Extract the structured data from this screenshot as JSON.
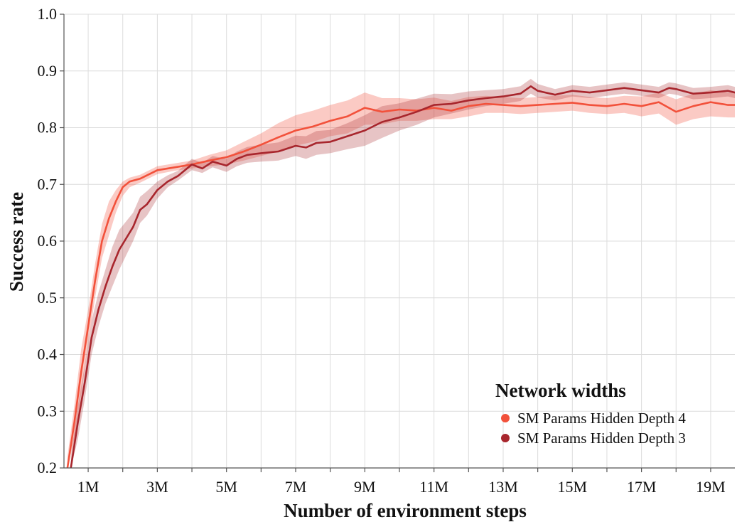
{
  "chart_data": {
    "type": "line",
    "title": "",
    "xlabel": "Number of environment steps",
    "ylabel": "Success rate",
    "xlim": [
      0.3,
      19.7
    ],
    "ylim": [
      0.2,
      1.0
    ],
    "x_unit": "M steps",
    "x_ticks": [
      1,
      3,
      5,
      7,
      9,
      11,
      13,
      15,
      17,
      19
    ],
    "x_tick_labels": [
      "1M",
      "3M",
      "5M",
      "7M",
      "9M",
      "11M",
      "13M",
      "15M",
      "17M",
      "19M"
    ],
    "x_grid": [
      1,
      2,
      3,
      4,
      5,
      6,
      7,
      8,
      9,
      10,
      11,
      12,
      13,
      14,
      15,
      16,
      17,
      18,
      19
    ],
    "y_ticks": [
      0.2,
      0.3,
      0.4,
      0.5,
      0.6,
      0.7,
      0.8,
      0.9,
      1.0
    ],
    "y_tick_labels": [
      "0.2",
      "0.3",
      "0.4",
      "0.5",
      "0.6",
      "0.7",
      "0.8",
      "0.9",
      "1.0"
    ],
    "grid": true,
    "legend": {
      "title": "Network widths",
      "placement": "bottom-right",
      "entries": [
        "SM Params Hidden Depth 4",
        "SM Params Hidden Depth 3"
      ]
    },
    "series": [
      {
        "name": "SM Params Hidden Depth 4",
        "color": "#f2513b",
        "band_color": "#f2513b",
        "x": [
          0.4,
          0.6,
          0.8,
          1.0,
          1.2,
          1.4,
          1.6,
          1.8,
          2.0,
          2.2,
          2.5,
          3.0,
          3.5,
          4.0,
          4.5,
          5.0,
          5.5,
          6.0,
          6.5,
          7.0,
          7.5,
          8.0,
          8.5,
          9.0,
          9.5,
          10.0,
          10.5,
          11.0,
          11.5,
          12.0,
          12.5,
          13.0,
          13.5,
          14.0,
          14.5,
          15.0,
          15.5,
          16.0,
          16.5,
          17.0,
          17.5,
          18.0,
          18.5,
          19.0,
          19.5,
          19.7
        ],
        "y": [
          0.2,
          0.28,
          0.37,
          0.45,
          0.53,
          0.6,
          0.64,
          0.67,
          0.695,
          0.705,
          0.71,
          0.725,
          0.73,
          0.735,
          0.742,
          0.748,
          0.758,
          0.77,
          0.783,
          0.795,
          0.802,
          0.812,
          0.82,
          0.835,
          0.828,
          0.832,
          0.83,
          0.835,
          0.83,
          0.838,
          0.842,
          0.84,
          0.838,
          0.84,
          0.842,
          0.844,
          0.84,
          0.838,
          0.842,
          0.838,
          0.845,
          0.828,
          0.838,
          0.845,
          0.84,
          0.84
        ],
        "lower": [
          0.2,
          0.25,
          0.33,
          0.42,
          0.5,
          0.57,
          0.61,
          0.65,
          0.68,
          0.695,
          0.703,
          0.718,
          0.724,
          0.728,
          0.732,
          0.735,
          0.742,
          0.75,
          0.758,
          0.768,
          0.775,
          0.785,
          0.79,
          0.805,
          0.806,
          0.812,
          0.812,
          0.815,
          0.815,
          0.82,
          0.826,
          0.826,
          0.824,
          0.826,
          0.828,
          0.83,
          0.826,
          0.824,
          0.826,
          0.82,
          0.825,
          0.805,
          0.815,
          0.82,
          0.818,
          0.818
        ],
        "upper": [
          0.22,
          0.31,
          0.41,
          0.48,
          0.56,
          0.63,
          0.67,
          0.69,
          0.705,
          0.712,
          0.717,
          0.732,
          0.737,
          0.742,
          0.752,
          0.76,
          0.775,
          0.79,
          0.808,
          0.822,
          0.83,
          0.84,
          0.848,
          0.862,
          0.852,
          0.852,
          0.85,
          0.853,
          0.847,
          0.854,
          0.856,
          0.854,
          0.852,
          0.854,
          0.856,
          0.858,
          0.854,
          0.852,
          0.856,
          0.855,
          0.862,
          0.85,
          0.86,
          0.866,
          0.862,
          0.862
        ]
      },
      {
        "name": "SM Params Hidden Depth 3",
        "color": "#a8262d",
        "band_color": "#b03a40",
        "x": [
          0.5,
          0.7,
          0.9,
          1.1,
          1.3,
          1.5,
          1.7,
          1.9,
          2.1,
          2.3,
          2.5,
          2.7,
          3.0,
          3.3,
          3.6,
          4.0,
          4.3,
          4.6,
          5.0,
          5.3,
          5.6,
          6.0,
          6.5,
          7.0,
          7.3,
          7.6,
          8.0,
          8.5,
          9.0,
          9.5,
          10.0,
          10.5,
          11.0,
          11.5,
          12.0,
          12.5,
          13.0,
          13.5,
          13.8,
          14.0,
          14.5,
          15.0,
          15.5,
          16.0,
          16.5,
          17.0,
          17.5,
          17.8,
          18.0,
          18.5,
          19.0,
          19.5,
          19.7
        ],
        "y": [
          0.2,
          0.28,
          0.35,
          0.43,
          0.48,
          0.52,
          0.555,
          0.585,
          0.605,
          0.625,
          0.655,
          0.665,
          0.69,
          0.705,
          0.715,
          0.735,
          0.728,
          0.74,
          0.733,
          0.745,
          0.752,
          0.755,
          0.758,
          0.768,
          0.765,
          0.773,
          0.775,
          0.785,
          0.795,
          0.81,
          0.818,
          0.828,
          0.84,
          0.842,
          0.848,
          0.852,
          0.855,
          0.86,
          0.873,
          0.865,
          0.858,
          0.865,
          0.862,
          0.866,
          0.87,
          0.866,
          0.862,
          0.87,
          0.868,
          0.86,
          0.862,
          0.865,
          0.862
        ],
        "lower": [
          0.2,
          0.25,
          0.32,
          0.4,
          0.45,
          0.49,
          0.52,
          0.55,
          0.575,
          0.6,
          0.632,
          0.645,
          0.675,
          0.695,
          0.707,
          0.725,
          0.72,
          0.73,
          0.722,
          0.732,
          0.738,
          0.74,
          0.742,
          0.75,
          0.745,
          0.752,
          0.755,
          0.762,
          0.768,
          0.782,
          0.795,
          0.805,
          0.818,
          0.825,
          0.832,
          0.838,
          0.842,
          0.847,
          0.86,
          0.853,
          0.848,
          0.855,
          0.852,
          0.856,
          0.86,
          0.856,
          0.852,
          0.86,
          0.858,
          0.85,
          0.852,
          0.855,
          0.852
        ],
        "upper": [
          0.22,
          0.31,
          0.38,
          0.46,
          0.51,
          0.55,
          0.59,
          0.62,
          0.635,
          0.65,
          0.678,
          0.688,
          0.705,
          0.716,
          0.724,
          0.745,
          0.738,
          0.75,
          0.745,
          0.758,
          0.766,
          0.77,
          0.774,
          0.786,
          0.785,
          0.794,
          0.796,
          0.808,
          0.822,
          0.838,
          0.843,
          0.851,
          0.86,
          0.859,
          0.864,
          0.866,
          0.868,
          0.873,
          0.886,
          0.877,
          0.868,
          0.875,
          0.872,
          0.876,
          0.88,
          0.876,
          0.872,
          0.88,
          0.878,
          0.87,
          0.872,
          0.875,
          0.872
        ]
      }
    ]
  }
}
